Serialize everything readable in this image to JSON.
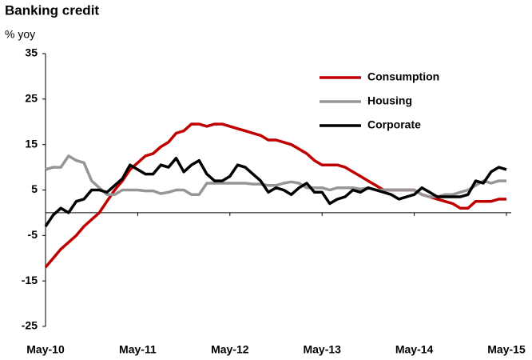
{
  "chart_data": {
    "type": "line",
    "title": "Banking credit",
    "subtitle": "% yoy",
    "categories": [
      "May-10",
      null,
      null,
      null,
      null,
      null,
      null,
      null,
      null,
      null,
      null,
      null,
      "May-11",
      null,
      null,
      null,
      null,
      null,
      null,
      null,
      null,
      null,
      null,
      null,
      "May-12",
      null,
      null,
      null,
      null,
      null,
      null,
      null,
      null,
      null,
      null,
      null,
      "May-13",
      null,
      null,
      null,
      null,
      null,
      null,
      null,
      null,
      null,
      null,
      null,
      "May-14",
      null,
      null,
      null,
      null,
      null,
      null,
      null,
      null,
      null,
      null,
      null,
      "May-15"
    ],
    "series": [
      {
        "name": "Consumption",
        "color": "#c00000",
        "values": [
          -12,
          -10,
          -8,
          -6.5,
          -5,
          -3,
          -1.5,
          0,
          2.5,
          5,
          7,
          9.5,
          11,
          12.5,
          13,
          14.5,
          15.5,
          17.5,
          18,
          19.5,
          19.5,
          19,
          19.5,
          19.5,
          19,
          18.5,
          18,
          17.5,
          17,
          16,
          16,
          15.5,
          15,
          14,
          13,
          11.5,
          10.5,
          10.5,
          10.5,
          10,
          9,
          8,
          7,
          6,
          5,
          5,
          5,
          5,
          5,
          4,
          3.5,
          3,
          2.5,
          2,
          1,
          1,
          2.5,
          2.5,
          2.5,
          3,
          3
        ]
      },
      {
        "name": "Housing",
        "color": "#969696",
        "values": [
          9.5,
          10,
          10,
          12.5,
          11.5,
          11,
          7,
          5.5,
          4,
          4,
          5,
          5,
          5,
          4.8,
          4.8,
          4.2,
          4.5,
          5,
          5,
          4,
          4,
          6.5,
          6.5,
          6.5,
          6.5,
          6.5,
          6.5,
          6.3,
          6.3,
          6,
          6,
          6.5,
          6.8,
          6.5,
          5.5,
          5.5,
          5.5,
          5,
          5.5,
          5.5,
          5.5,
          5.2,
          5.5,
          5,
          5,
          5,
          5,
          5,
          5,
          4,
          3.5,
          3.5,
          4,
          4,
          4.5,
          5,
          6,
          7,
          6.5,
          7,
          7
        ]
      },
      {
        "name": "Corporate",
        "color": "#000000",
        "values": [
          -3,
          -0.5,
          1,
          0,
          2.5,
          3,
          5,
          5,
          4.5,
          6,
          7.5,
          10.5,
          9.5,
          8.5,
          8.5,
          10.5,
          10,
          12,
          9,
          10.5,
          11.5,
          8.5,
          7,
          7,
          8,
          10.5,
          10,
          8.5,
          7,
          4.5,
          5.5,
          5,
          4,
          5.5,
          6.5,
          4.5,
          4.5,
          2,
          3,
          3.5,
          5,
          4.5,
          5.5,
          5,
          4.5,
          4,
          3,
          3.5,
          4,
          5.5,
          4.5,
          3.5,
          3.5,
          3.5,
          3.5,
          4,
          7,
          6.5,
          9,
          10,
          9.5
        ]
      }
    ],
    "ylim": [
      -25,
      35
    ],
    "yticks": [
      -25,
      -15,
      -5,
      5,
      15,
      25,
      35
    ],
    "grid": false,
    "legend": "upper right"
  }
}
